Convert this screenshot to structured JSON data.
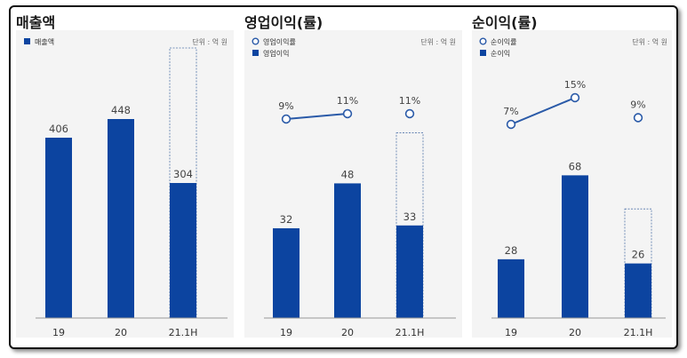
{
  "colors": {
    "bar": "#0c44a0",
    "line": "#2a5aa8",
    "axis": "#999999",
    "text": "#444444",
    "dashed": "#5577aa"
  },
  "chart_data": [
    {
      "type": "bar",
      "title": "매출액",
      "unit": "단위 : 억 원",
      "legend": [
        {
          "label": "매출액",
          "marker": "square"
        }
      ],
      "categories": [
        "19",
        "20",
        "21.1H"
      ],
      "series": [
        {
          "name": "매출액",
          "values": [
            406,
            448,
            304
          ]
        }
      ],
      "projected_category_index": 2,
      "ylim": [
        0,
        600
      ]
    },
    {
      "type": "bar",
      "title": "영업이익(률)",
      "unit": "단위 : 억 원",
      "legend": [
        {
          "label": "영업이익률",
          "marker": "circle"
        },
        {
          "label": "영업이익",
          "marker": "square"
        }
      ],
      "categories": [
        "19",
        "20",
        "21.1H"
      ],
      "series": [
        {
          "name": "영업이익",
          "values": [
            32,
            48,
            33
          ]
        },
        {
          "name": "영업이익률",
          "type": "line",
          "values": [
            9,
            11,
            11
          ],
          "labels": [
            "9%",
            "11%",
            "11%"
          ],
          "connected_points": [
            0,
            1
          ]
        }
      ],
      "projected_category_index": 2,
      "ylim": [
        0,
        95
      ]
    },
    {
      "type": "bar",
      "title": "순이익(률)",
      "unit": "단위 : 억 원",
      "legend": [
        {
          "label": "순이익률",
          "marker": "circle"
        },
        {
          "label": "순이익",
          "marker": "square"
        }
      ],
      "categories": [
        "19",
        "20",
        "21.1H"
      ],
      "series": [
        {
          "name": "순이익",
          "values": [
            28,
            68,
            26
          ]
        },
        {
          "name": "순이익률",
          "type": "line",
          "values": [
            7,
            15,
            9
          ],
          "labels": [
            "7%",
            "15%",
            "9%"
          ],
          "connected_points": [
            0,
            1
          ]
        }
      ],
      "projected_category_index": 2,
      "ylim": [
        0,
        127
      ]
    }
  ]
}
